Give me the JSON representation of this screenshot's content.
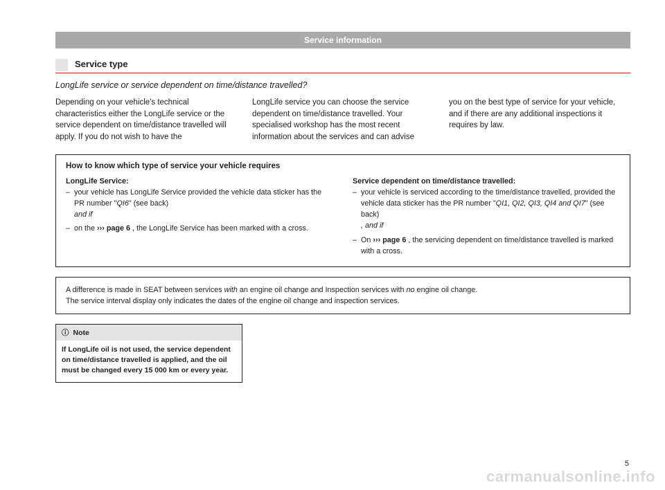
{
  "header": {
    "title": "Service information"
  },
  "section": {
    "title": "Service type"
  },
  "subtitle": "LongLife service or service dependent on time/distance travelled?",
  "para": {
    "c1": "Depending on your vehicle's technical characteristics either the LongLife service or the service dependent on time/distance travelled will apply. If you do not wish to have the",
    "c2": "LongLife service you can choose the service dependent on time/distance travelled. Your specialised workshop has the most recent information about the services and can advise",
    "c3": "you on the best type of service for your vehicle, and if there are any additional inspections it requires by law."
  },
  "box1": {
    "title": "How to know which type of service your vehicle requires",
    "left": {
      "heading": "LongLife Service:",
      "item1a": "your vehicle has LongLife Service provided the vehicle data sticker has the PR number \"",
      "item1b": "QI6",
      "item1c": "\" (see back)",
      "item1d": "and if",
      "item2a": "on the ",
      "item2b": "››› page 6",
      "item2c": " , the LongLife Service has been marked with a cross."
    },
    "right": {
      "heading": "Service dependent on time/distance travelled:",
      "item1a": "your vehicle is serviced according to the time/distance travelled, provided the vehicle data sticker has the PR number \"",
      "item1b": "QI1, QI2, QI3, QI4 and QI7",
      "item1c": "\" (see back)",
      "item1d": ", and if",
      "item2a": "On ",
      "item2b": "››› page 6",
      "item2c": " , the servicing dependent on time/distance travelled is marked with a cross."
    }
  },
  "box2": {
    "line1a": "A difference is made in SEAT between services ",
    "line1b": "with",
    "line1c": " an engine oil change and Inspection services with ",
    "line1d": "no",
    "line1e": " engine oil change.",
    "line2": "The service interval display only indicates the dates of the engine oil change and inspection services."
  },
  "note": {
    "icon": "ⓘ",
    "label": "Note",
    "body": "If LongLife oil is not used, the service dependent on time/distance travelled is applied, and the oil must be changed every 15 000 km or every year."
  },
  "pagenum": "5",
  "watermark": "carmanualsonline.info",
  "colors": {
    "accent_red": "#d00000",
    "grey_bar": "#a9a9a9",
    "light_grey": "#e4e4e4",
    "text": "#222222",
    "watermark": "#d9d9d9",
    "bg": "#ffffff"
  }
}
